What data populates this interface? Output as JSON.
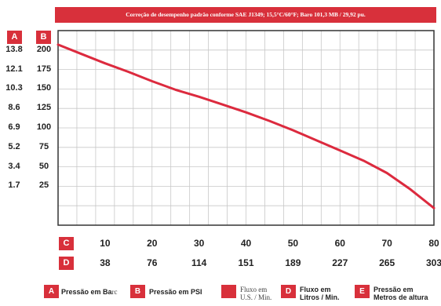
{
  "chart_data": {
    "type": "line",
    "title": "Correção de desempenho padrão conforme SAE J1349; 15,5°C/60°F; Baro 101,3 MB / 29,92 pu.",
    "x_axis_c": {
      "label": "C",
      "ticks": [
        10,
        20,
        30,
        40,
        50,
        60,
        70,
        80
      ]
    },
    "x_axis_d": {
      "label": "D",
      "ticks": [
        38,
        76,
        114,
        151,
        189,
        227,
        265,
        303
      ]
    },
    "y_axis_a": {
      "label": "A",
      "ticks": [
        13.8,
        12.1,
        10.3,
        8.6,
        6.9,
        5.2,
        3.4,
        1.7
      ]
    },
    "y_axis_b": {
      "label": "B",
      "ticks": [
        200,
        175,
        150,
        125,
        100,
        75,
        50,
        25
      ]
    },
    "xlim": [
      0,
      80
    ],
    "ylim": [
      -25,
      225
    ],
    "grid": true,
    "series": [
      {
        "color": "#dc2a3e",
        "x": [
          0,
          5,
          10,
          15,
          20,
          25,
          30,
          35,
          40,
          45,
          50,
          55,
          60,
          65,
          70,
          75,
          80
        ],
        "y": [
          207,
          195,
          183,
          172,
          160,
          149,
          140,
          130,
          120,
          109,
          97,
          84,
          71,
          58,
          42,
          21,
          -3
        ]
      }
    ]
  },
  "legend": [
    {
      "tag": "A",
      "text_a": "Pressão em Ba",
      "text_b": "rc"
    },
    {
      "tag": "B",
      "text": "Pressão em PSI"
    },
    {
      "tag": "C",
      "line1": "Fluxo em",
      "line2": "U.S. / Min."
    },
    {
      "tag": "D",
      "line1": "Fluxo em",
      "line2": "Litros / Min."
    },
    {
      "tag": "E",
      "line1": "Pressão em",
      "line2": "Metros de altura"
    }
  ]
}
